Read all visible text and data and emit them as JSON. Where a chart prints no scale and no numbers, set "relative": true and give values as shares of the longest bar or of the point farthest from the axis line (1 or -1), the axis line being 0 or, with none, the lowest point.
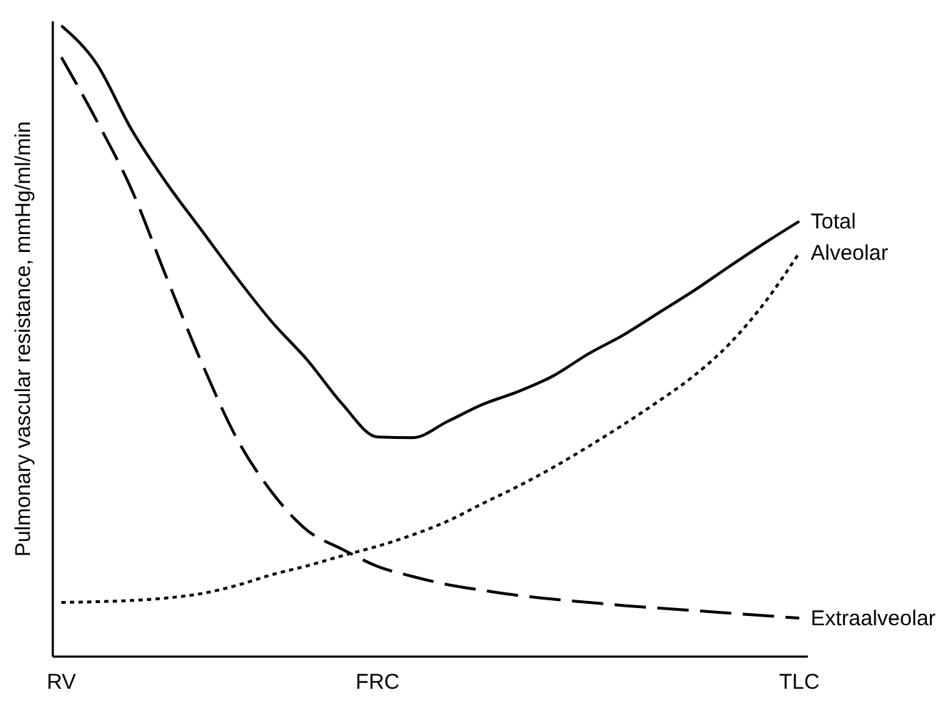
{
  "chart_data": {
    "type": "line",
    "relative": true,
    "ylabel": "Pulmonary vascular resistance, mmHg/ml/min",
    "categories": [
      "RV",
      null,
      null,
      null,
      null,
      null,
      null,
      null,
      null,
      "FRC",
      null,
      null,
      null,
      null,
      null,
      null,
      null,
      null,
      null,
      null,
      null,
      "TLC"
    ],
    "legend": false,
    "grid": false,
    "marker": "none",
    "series": [
      {
        "name": "Total",
        "color": "#000000",
        "line_style": "solid",
        "values": [
          1.0,
          0.94,
          0.835,
          0.75,
          0.675,
          0.6,
          0.53,
          0.47,
          0.4,
          0.348,
          0.347,
          0.373,
          0.4,
          0.42,
          0.445,
          0.48,
          0.51,
          0.545,
          0.58,
          0.618,
          0.655,
          0.69
        ]
      },
      {
        "name": "Alveolar",
        "color": "#000000",
        "line_style": "dotted",
        "values": [
          0.086,
          0.087,
          0.089,
          0.093,
          0.1,
          0.113,
          0.13,
          0.144,
          0.16,
          0.175,
          0.193,
          0.215,
          0.243,
          0.27,
          0.3,
          0.333,
          0.368,
          0.405,
          0.445,
          0.495,
          0.56,
          0.64
        ]
      },
      {
        "name": "Extraalveolar",
        "color": "#000000",
        "line_style": "dashed",
        "values": [
          0.95,
          0.85,
          0.74,
          0.6,
          0.465,
          0.345,
          0.26,
          0.2,
          0.17,
          0.143,
          0.127,
          0.114,
          0.105,
          0.097,
          0.091,
          0.086,
          0.081,
          0.077,
          0.073,
          0.069,
          0.065,
          0.061
        ]
      }
    ]
  }
}
